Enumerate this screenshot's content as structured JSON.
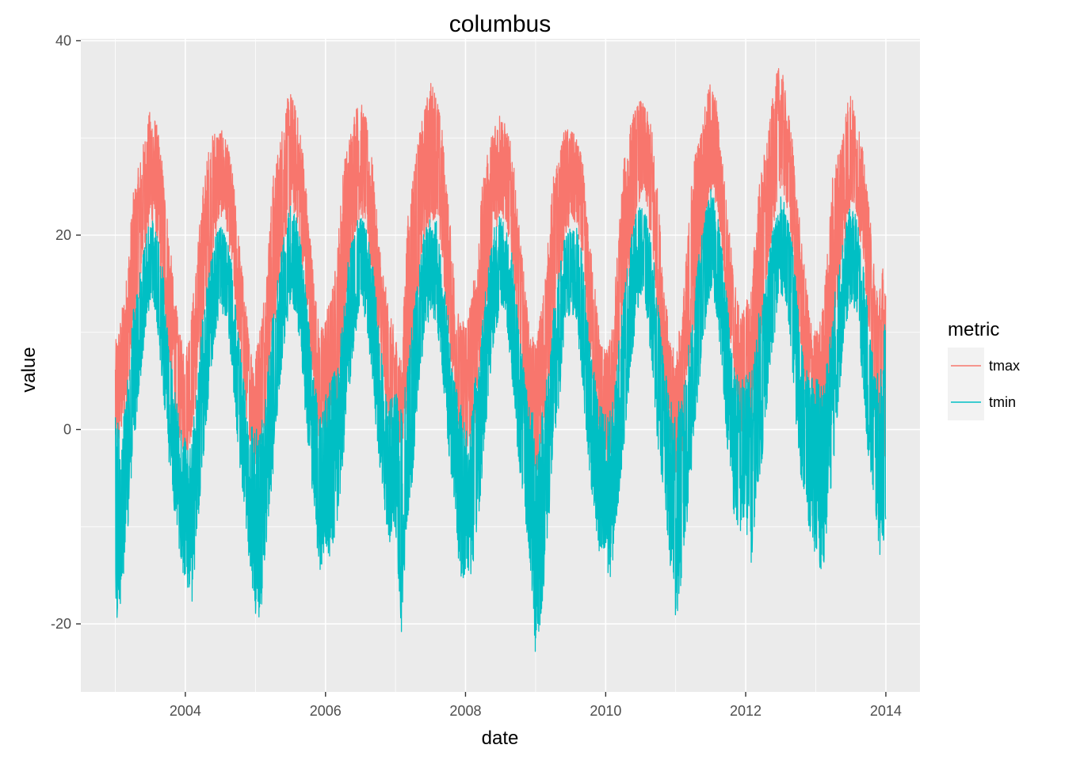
{
  "chart_data": {
    "type": "line",
    "title": "columbus",
    "xlabel": "date",
    "ylabel": "value",
    "x_axis": {
      "type": "date",
      "range": [
        "2002-07-05",
        "2014-06-28"
      ],
      "ticks": [
        {
          "value": "2004-01-01",
          "label": "2004"
        },
        {
          "value": "2006-01-01",
          "label": "2006"
        },
        {
          "value": "2008-01-01",
          "label": "2008"
        },
        {
          "value": "2010-01-01",
          "label": "2010"
        },
        {
          "value": "2012-01-01",
          "label": "2012"
        },
        {
          "value": "2014-01-01",
          "label": "2014"
        }
      ]
    },
    "y_axis": {
      "range": [
        -27,
        40.2
      ],
      "ticks": [
        {
          "value": -20,
          "label": "-20"
        },
        {
          "value": 0,
          "label": "0"
        },
        {
          "value": 20,
          "label": "20"
        },
        {
          "value": 40,
          "label": "40"
        }
      ]
    },
    "grid": true,
    "legend": {
      "title": "metric",
      "position": "right"
    },
    "series": [
      {
        "name": "tmax",
        "color": "#F8766D",
        "x": [
          "2003-01-01",
          "2003-02-01",
          "2003-03-01",
          "2003-04-01",
          "2003-05-01",
          "2003-06-01",
          "2003-07-01",
          "2003-08-01",
          "2003-09-01",
          "2003-10-01",
          "2003-11-01",
          "2003-12-01",
          "2004-01-01",
          "2004-02-01",
          "2004-03-01",
          "2004-04-01",
          "2004-05-01",
          "2004-06-01",
          "2004-07-01",
          "2004-08-01",
          "2004-09-01",
          "2004-10-01",
          "2004-11-01",
          "2004-12-01",
          "2005-01-01",
          "2005-02-01",
          "2005-03-01",
          "2005-04-01",
          "2005-05-01",
          "2005-06-01",
          "2005-07-01",
          "2005-08-01",
          "2005-09-01",
          "2005-10-01",
          "2005-11-01",
          "2005-12-01",
          "2006-01-01",
          "2006-02-01",
          "2006-03-01",
          "2006-04-01",
          "2006-05-01",
          "2006-06-01",
          "2006-07-01",
          "2006-08-01",
          "2006-09-01",
          "2006-10-01",
          "2006-11-01",
          "2006-12-01",
          "2007-01-01",
          "2007-02-01",
          "2007-03-01",
          "2007-04-01",
          "2007-05-01",
          "2007-06-01",
          "2007-07-01",
          "2007-08-01",
          "2007-09-01",
          "2007-10-01",
          "2007-11-01",
          "2007-12-01",
          "2008-01-01",
          "2008-02-01",
          "2008-03-01",
          "2008-04-01",
          "2008-05-01",
          "2008-06-01",
          "2008-07-01",
          "2008-08-01",
          "2008-09-01",
          "2008-10-01",
          "2008-11-01",
          "2008-12-01",
          "2009-01-01",
          "2009-02-01",
          "2009-03-01",
          "2009-04-01",
          "2009-05-01",
          "2009-06-01",
          "2009-07-01",
          "2009-08-01",
          "2009-09-01",
          "2009-10-01",
          "2009-11-01",
          "2009-12-01",
          "2010-01-01",
          "2010-02-01",
          "2010-03-01",
          "2010-04-01",
          "2010-05-01",
          "2010-06-01",
          "2010-07-01",
          "2010-08-01",
          "2010-09-01",
          "2010-10-01",
          "2010-11-01",
          "2010-12-01",
          "2011-01-01",
          "2011-02-01",
          "2011-03-01",
          "2011-04-01",
          "2011-05-01",
          "2011-06-01",
          "2011-07-01",
          "2011-08-01",
          "2011-09-01",
          "2011-10-01",
          "2011-11-01",
          "2011-12-01",
          "2012-01-01",
          "2012-02-01",
          "2012-03-01",
          "2012-04-01",
          "2012-05-01",
          "2012-06-01",
          "2012-07-01",
          "2012-08-01",
          "2012-09-01",
          "2012-10-01",
          "2012-11-01",
          "2012-12-01",
          "2013-01-01",
          "2013-02-01",
          "2013-03-01",
          "2013-04-01",
          "2013-05-01",
          "2013-06-01",
          "2013-07-01",
          "2013-08-01",
          "2013-09-01",
          "2013-10-01",
          "2013-11-01",
          "2013-12-01",
          "2013-12-31"
        ],
        "lo": [
          -3,
          -1,
          2,
          8,
          13,
          18,
          21,
          20,
          14,
          8,
          3,
          -1,
          -3,
          -1,
          3,
          9,
          14,
          19,
          22,
          21,
          16,
          9,
          3,
          -1,
          -5,
          -2,
          2,
          8,
          13,
          19,
          22,
          22,
          17,
          10,
          4,
          -2,
          -1,
          0,
          2,
          8,
          14,
          20,
          22,
          21,
          15,
          8,
          3,
          0,
          -1,
          -4,
          2,
          7,
          14,
          19,
          21,
          22,
          17,
          10,
          4,
          -2,
          -3,
          -3,
          3,
          9,
          14,
          20,
          22,
          21,
          17,
          9,
          3,
          -2,
          -5,
          -3,
          2,
          8,
          14,
          19,
          21,
          21,
          17,
          8,
          4,
          -2,
          -4,
          -3,
          3,
          10,
          15,
          21,
          24,
          23,
          18,
          10,
          4,
          -3,
          -5,
          -3,
          2,
          9,
          14,
          20,
          24,
          23,
          18,
          10,
          5,
          0,
          -1,
          0,
          6,
          10,
          17,
          22,
          25,
          23,
          18,
          10,
          4,
          0,
          -2,
          -1,
          1,
          7,
          14,
          19,
          23,
          22,
          18,
          11,
          2,
          -2,
          -3
        ],
        "hi": [
          9,
          12,
          16,
          24,
          27,
          30,
          33,
          32,
          28,
          22,
          15,
          10,
          8,
          12,
          18,
          25,
          29,
          31,
          31,
          30,
          27,
          21,
          15,
          9,
          8,
          12,
          17,
          26,
          29,
          33,
          35,
          33,
          30,
          23,
          16,
          10,
          12,
          14,
          18,
          27,
          30,
          33,
          34,
          32,
          28,
          21,
          16,
          12,
          10,
          7,
          21,
          27,
          30,
          33,
          36,
          35,
          31,
          24,
          17,
          11,
          12,
          14,
          18,
          26,
          29,
          32,
          33,
          31,
          29,
          22,
          16,
          10,
          9,
          13,
          18,
          26,
          28,
          31,
          31,
          30,
          28,
          21,
          16,
          10,
          8,
          10,
          18,
          27,
          31,
          33,
          34,
          33,
          31,
          24,
          16,
          9,
          8,
          12,
          19,
          28,
          30,
          33,
          36,
          34,
          28,
          22,
          16,
          12,
          13,
          15,
          24,
          28,
          31,
          36,
          38,
          34,
          30,
          23,
          17,
          12,
          10,
          12,
          18,
          27,
          29,
          33,
          35,
          32,
          29,
          24,
          17,
          15,
          19
        ]
      },
      {
        "name": "tmin",
        "color": "#00BFC4",
        "x": [
          "2003-01-01",
          "2003-02-01",
          "2003-03-01",
          "2003-04-01",
          "2003-05-01",
          "2003-06-01",
          "2003-07-01",
          "2003-08-01",
          "2003-09-01",
          "2003-10-01",
          "2003-11-01",
          "2003-12-01",
          "2004-01-01",
          "2004-02-01",
          "2004-03-01",
          "2004-04-01",
          "2004-05-01",
          "2004-06-01",
          "2004-07-01",
          "2004-08-01",
          "2004-09-01",
          "2004-10-01",
          "2004-11-01",
          "2004-12-01",
          "2005-01-01",
          "2005-02-01",
          "2005-03-01",
          "2005-04-01",
          "2005-05-01",
          "2005-06-01",
          "2005-07-01",
          "2005-08-01",
          "2005-09-01",
          "2005-10-01",
          "2005-11-01",
          "2005-12-01",
          "2006-01-01",
          "2006-02-01",
          "2006-03-01",
          "2006-04-01",
          "2006-05-01",
          "2006-06-01",
          "2006-07-01",
          "2006-08-01",
          "2006-09-01",
          "2006-10-01",
          "2006-11-01",
          "2006-12-01",
          "2007-01-01",
          "2007-02-01",
          "2007-03-01",
          "2007-04-01",
          "2007-05-01",
          "2007-06-01",
          "2007-07-01",
          "2007-08-01",
          "2007-09-01",
          "2007-10-01",
          "2007-11-01",
          "2007-12-01",
          "2008-01-01",
          "2008-02-01",
          "2008-03-01",
          "2008-04-01",
          "2008-05-01",
          "2008-06-01",
          "2008-07-01",
          "2008-08-01",
          "2008-09-01",
          "2008-10-01",
          "2008-11-01",
          "2008-12-01",
          "2009-01-01",
          "2009-02-01",
          "2009-03-01",
          "2009-04-01",
          "2009-05-01",
          "2009-06-01",
          "2009-07-01",
          "2009-08-01",
          "2009-09-01",
          "2009-10-01",
          "2009-11-01",
          "2009-12-01",
          "2010-01-01",
          "2010-02-01",
          "2010-03-01",
          "2010-04-01",
          "2010-05-01",
          "2010-06-01",
          "2010-07-01",
          "2010-08-01",
          "2010-09-01",
          "2010-10-01",
          "2010-11-01",
          "2010-12-01",
          "2011-01-01",
          "2011-02-01",
          "2011-03-01",
          "2011-04-01",
          "2011-05-01",
          "2011-06-01",
          "2011-07-01",
          "2011-08-01",
          "2011-09-01",
          "2011-10-01",
          "2011-11-01",
          "2011-12-01",
          "2012-01-01",
          "2012-02-01",
          "2012-03-01",
          "2012-04-01",
          "2012-05-01",
          "2012-06-01",
          "2012-07-01",
          "2012-08-01",
          "2012-09-01",
          "2012-10-01",
          "2012-11-01",
          "2012-12-01",
          "2013-01-01",
          "2013-02-01",
          "2013-03-01",
          "2013-04-01",
          "2013-05-01",
          "2013-06-01",
          "2013-07-01",
          "2013-08-01",
          "2013-09-01",
          "2013-10-01",
          "2013-11-01",
          "2013-12-01",
          "2013-12-31"
        ],
        "lo": [
          -23,
          -17,
          -12,
          -3,
          3,
          9,
          13,
          12,
          5,
          -2,
          -8,
          -13,
          -16,
          -20,
          -11,
          -4,
          3,
          9,
          12,
          11,
          6,
          -3,
          -8,
          -14,
          -20,
          -19,
          -11,
          -5,
          3,
          9,
          13,
          12,
          6,
          -2,
          -8,
          -15,
          -12,
          -14,
          -10,
          -4,
          3,
          9,
          13,
          11,
          5,
          -2,
          -8,
          -12,
          -11,
          -21,
          -10,
          -5,
          4,
          9,
          12,
          11,
          6,
          -2,
          -7,
          -15,
          -16,
          -15,
          -11,
          -4,
          4,
          9,
          13,
          11,
          5,
          -3,
          -8,
          -14,
          -24,
          -19,
          -12,
          -4,
          2,
          9,
          12,
          11,
          5,
          -4,
          -8,
          -15,
          -16,
          -15,
          -9,
          -3,
          4,
          10,
          14,
          12,
          6,
          -2,
          -7,
          -14,
          -20,
          -16,
          -10,
          -3,
          4,
          10,
          14,
          12,
          6,
          -3,
          -9,
          -11,
          -10,
          -14,
          -6,
          -3,
          5,
          10,
          14,
          13,
          6,
          -3,
          -7,
          -11,
          -13,
          -16,
          -10,
          -4,
          3,
          10,
          13,
          12,
          5,
          -3,
          -8,
          -13,
          -11
        ],
        "hi": [
          2,
          0,
          4,
          12,
          15,
          19,
          22,
          21,
          18,
          10,
          5,
          1,
          -1,
          -2,
          5,
          12,
          16,
          20,
          21,
          20,
          17,
          11,
          5,
          1,
          0,
          1,
          5,
          12,
          16,
          21,
          23,
          22,
          19,
          12,
          6,
          1,
          4,
          6,
          6,
          12,
          18,
          21,
          22,
          21,
          18,
          12,
          6,
          3,
          4,
          2,
          6,
          12,
          16,
          21,
          22,
          22,
          17,
          12,
          6,
          3,
          1,
          2,
          7,
          12,
          18,
          22,
          22,
          21,
          18,
          12,
          6,
          3,
          1,
          2,
          6,
          12,
          16,
          20,
          21,
          21,
          18,
          12,
          6,
          3,
          2,
          2,
          7,
          14,
          18,
          22,
          23,
          22,
          19,
          13,
          7,
          3,
          3,
          3,
          7,
          13,
          18,
          22,
          25,
          23,
          19,
          13,
          7,
          5,
          6,
          6,
          11,
          15,
          18,
          22,
          24,
          23,
          19,
          13,
          7,
          5,
          6,
          5,
          7,
          13,
          17,
          21,
          23,
          22,
          18,
          12,
          7,
          5,
          13
        ]
      }
    ]
  }
}
